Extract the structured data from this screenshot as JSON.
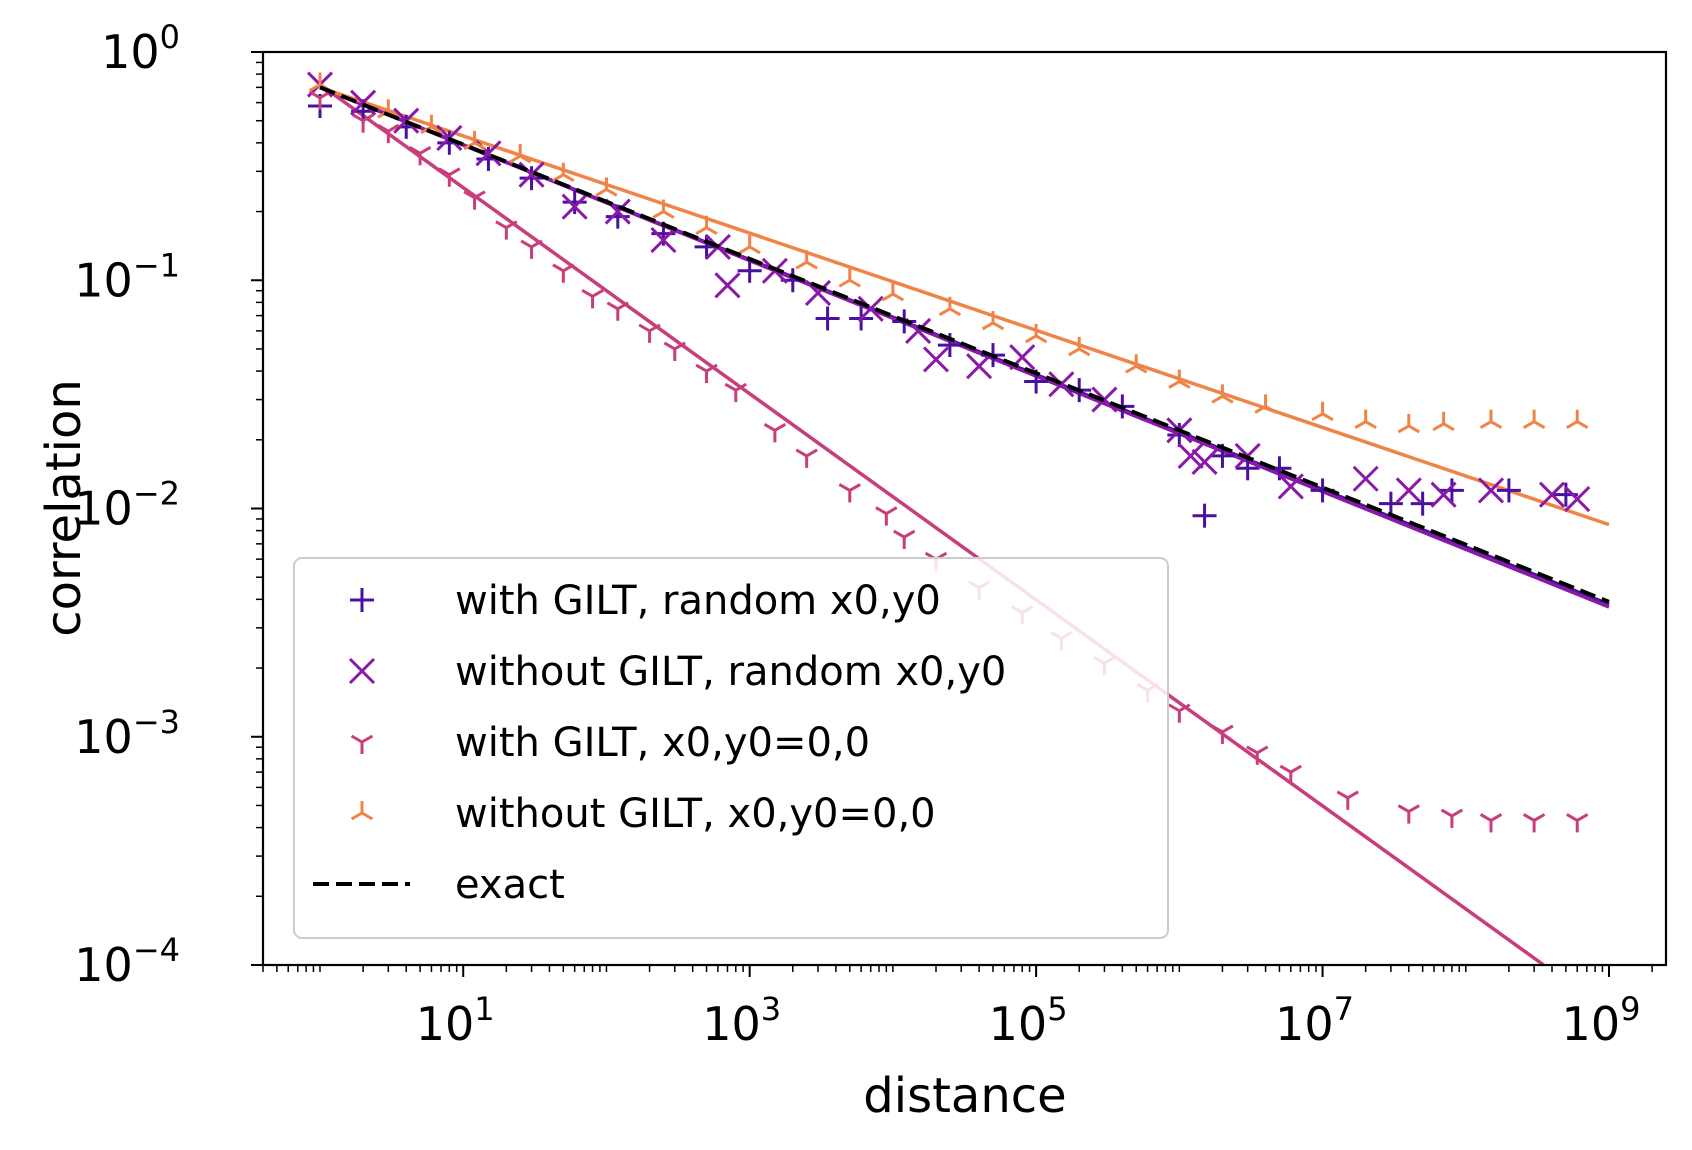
{
  "chart_data": {
    "type": "scatter",
    "x_scale": "log",
    "y_scale": "log",
    "xlabel": "distance",
    "ylabel": "correlation",
    "xlim": [
      0.4,
      2500000000.0
    ],
    "ylim": [
      0.0001,
      1
    ],
    "x_ticks": [
      {
        "base": "10",
        "exp": "1",
        "value": 10
      },
      {
        "base": "10",
        "exp": "3",
        "value": 1000
      },
      {
        "base": "10",
        "exp": "5",
        "value": 100000
      },
      {
        "base": "10",
        "exp": "7",
        "value": 10000000
      },
      {
        "base": "10",
        "exp": "9",
        "value": 1000000000
      }
    ],
    "y_ticks": [
      {
        "base": "10",
        "exp": "0",
        "value": 1
      },
      {
        "base": "10",
        "exp": "−1",
        "value": 0.1
      },
      {
        "base": "10",
        "exp": "−2",
        "value": 0.01
      },
      {
        "base": "10",
        "exp": "−3",
        "value": 0.001
      },
      {
        "base": "10",
        "exp": "−4",
        "value": 0.0001
      }
    ],
    "grid": false,
    "legend_position": "lower-left",
    "series": [
      {
        "name": "with GILT, random x0,y0",
        "marker": "plus",
        "color": "#4a10a0",
        "points": [
          [
            1,
            0.58
          ],
          [
            2,
            0.55
          ],
          [
            4,
            0.47
          ],
          [
            8,
            0.4
          ],
          [
            15,
            0.34
          ],
          [
            30,
            0.28
          ],
          [
            60,
            0.22
          ],
          [
            120,
            0.19
          ],
          [
            250,
            0.16
          ],
          [
            500,
            0.14
          ],
          [
            1000,
            0.11
          ],
          [
            2000,
            0.1
          ],
          [
            3500,
            0.068
          ],
          [
            6000,
            0.068
          ],
          [
            12000,
            0.066
          ],
          [
            25000,
            0.052
          ],
          [
            50000,
            0.047
          ],
          [
            100000,
            0.036
          ],
          [
            200000,
            0.033
          ],
          [
            400000,
            0.028
          ],
          [
            1000000,
            0.021
          ],
          [
            1500000,
            0.0093
          ],
          [
            2000000,
            0.017
          ],
          [
            3000000,
            0.015
          ],
          [
            5000000,
            0.015
          ],
          [
            10000000,
            0.012
          ],
          [
            30000000,
            0.0105
          ],
          [
            50000000,
            0.0105
          ],
          [
            80000000,
            0.012
          ],
          [
            200000000,
            0.012
          ],
          [
            500000000,
            0.0115
          ]
        ],
        "fit": [
          [
            1,
            0.7
          ],
          [
            1000000000,
            0.0038
          ]
        ]
      },
      {
        "name": "without GILT, random x0,y0",
        "marker": "x",
        "color": "#8a18a8",
        "points": [
          [
            1,
            0.72
          ],
          [
            2,
            0.6
          ],
          [
            4,
            0.5
          ],
          [
            8,
            0.42
          ],
          [
            15,
            0.36
          ],
          [
            30,
            0.29
          ],
          [
            60,
            0.21
          ],
          [
            120,
            0.2
          ],
          [
            250,
            0.15
          ],
          [
            600,
            0.14
          ],
          [
            700,
            0.095
          ],
          [
            1500,
            0.11
          ],
          [
            3000,
            0.088
          ],
          [
            7000,
            0.075
          ],
          [
            15000,
            0.06
          ],
          [
            20000,
            0.045
          ],
          [
            40000,
            0.042
          ],
          [
            80000,
            0.046
          ],
          [
            150000,
            0.035
          ],
          [
            300000,
            0.03
          ],
          [
            1000000,
            0.022
          ],
          [
            1200000,
            0.017
          ],
          [
            1500000,
            0.016
          ],
          [
            3000000,
            0.017
          ],
          [
            6000000,
            0.0125
          ],
          [
            20000000,
            0.0135
          ],
          [
            40000000,
            0.012
          ],
          [
            70000000,
            0.0115
          ],
          [
            150000000,
            0.012
          ],
          [
            400000000,
            0.0115
          ],
          [
            600000000,
            0.011
          ]
        ],
        "fit": [
          [
            1,
            0.7
          ],
          [
            1000000000,
            0.0037
          ]
        ]
      },
      {
        "name": "with GILT, x0,y0=0,0",
        "marker": "tri_down",
        "color": "#c83e7c",
        "points": [
          [
            1,
            0.63
          ],
          [
            2,
            0.5
          ],
          [
            3,
            0.45
          ],
          [
            5,
            0.36
          ],
          [
            8,
            0.29
          ],
          [
            12,
            0.23
          ],
          [
            20,
            0.17
          ],
          [
            30,
            0.14
          ],
          [
            50,
            0.11
          ],
          [
            80,
            0.085
          ],
          [
            120,
            0.075
          ],
          [
            200,
            0.06
          ],
          [
            300,
            0.05
          ],
          [
            500,
            0.04
          ],
          [
            800,
            0.033
          ],
          [
            1500,
            0.022
          ],
          [
            2500,
            0.017
          ],
          [
            5000,
            0.012
          ],
          [
            9000,
            0.0095
          ],
          [
            12000,
            0.0075
          ],
          [
            20000,
            0.006
          ],
          [
            40000,
            0.0045
          ],
          [
            80000,
            0.0035
          ],
          [
            150000,
            0.0027
          ],
          [
            300000,
            0.0021
          ],
          [
            600000,
            0.0016
          ],
          [
            1000000,
            0.0013
          ],
          [
            2000000,
            0.00105
          ],
          [
            3500000,
            0.00085
          ],
          [
            6000000,
            0.0007
          ],
          [
            15000000,
            0.00054
          ],
          [
            40000000,
            0.00047
          ],
          [
            80000000,
            0.00045
          ],
          [
            150000000,
            0.00043
          ],
          [
            300000000,
            0.00043
          ],
          [
            600000000,
            0.00043
          ]
        ],
        "fit": [
          [
            1,
            0.72
          ],
          [
            350000000,
            0.0001
          ]
        ]
      },
      {
        "name": "without GILT, x0,y0=0,0",
        "marker": "tri_up",
        "color": "#f08448",
        "points": [
          [
            1,
            0.72
          ],
          [
            3,
            0.55
          ],
          [
            6,
            0.47
          ],
          [
            12,
            0.4
          ],
          [
            25,
            0.35
          ],
          [
            50,
            0.29
          ],
          [
            100,
            0.25
          ],
          [
            250,
            0.2
          ],
          [
            500,
            0.17
          ],
          [
            1000,
            0.14
          ],
          [
            2500,
            0.12
          ],
          [
            5000,
            0.1
          ],
          [
            10000,
            0.087
          ],
          [
            25000,
            0.075
          ],
          [
            50000,
            0.065
          ],
          [
            100000,
            0.057
          ],
          [
            200000,
            0.05
          ],
          [
            500000,
            0.042
          ],
          [
            1000000,
            0.036
          ],
          [
            2000000,
            0.031
          ],
          [
            4000000,
            0.028
          ],
          [
            10000000,
            0.026
          ],
          [
            20000000,
            0.024
          ],
          [
            40000000,
            0.023
          ],
          [
            70000000,
            0.0235
          ],
          [
            150000000,
            0.024
          ],
          [
            300000000,
            0.024
          ],
          [
            600000000,
            0.024
          ]
        ],
        "fit": [
          [
            1,
            0.7
          ],
          [
            1000000000,
            0.0085
          ]
        ]
      },
      {
        "name": "exact",
        "marker": "dashed-line",
        "color": "#000000",
        "fit": [
          [
            1,
            0.7
          ],
          [
            1000000000,
            0.0039
          ]
        ]
      }
    ]
  }
}
